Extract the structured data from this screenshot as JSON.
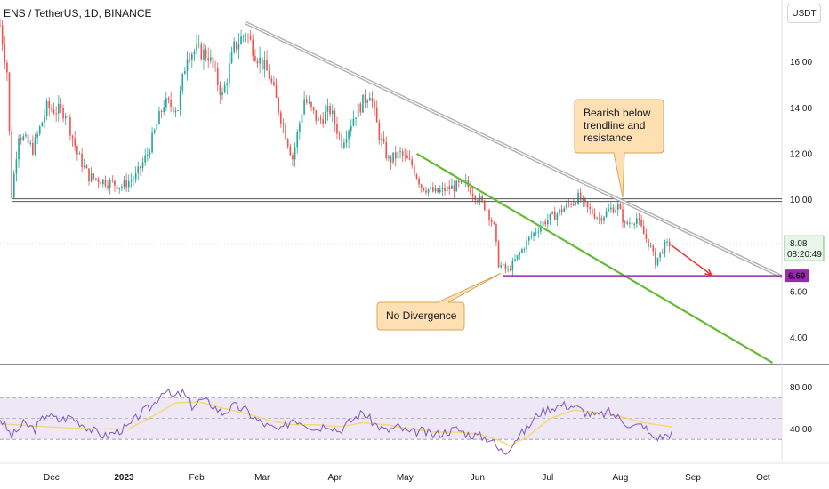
{
  "header": {
    "title": "ENS / TetherUS, 1D, BINANCE",
    "currency": "USDT"
  },
  "chart_data": {
    "type": "candlestick",
    "price_axis": {
      "ticks": [
        {
          "label": "16.00",
          "value": 16
        },
        {
          "label": "14.00",
          "value": 14
        },
        {
          "label": "12.00",
          "value": 12
        },
        {
          "label": "10.00",
          "value": 10
        },
        {
          "label": "8.00",
          "value": 8
        },
        {
          "label": "6.00",
          "value": 6
        },
        {
          "label": "4.00",
          "value": 4
        }
      ],
      "range": [
        2.9,
        18.0
      ]
    },
    "rsi_axis": {
      "ticks": [
        {
          "label": "80.00",
          "value": 80
        },
        {
          "label": "40.00",
          "value": 40
        }
      ],
      "range": [
        8,
        100
      ],
      "band": [
        30,
        70
      ],
      "mid": 50
    },
    "time_axis": {
      "ticks": [
        {
          "label": "Dec",
          "index": 22,
          "bold": false
        },
        {
          "label": "2023",
          "index": 53,
          "bold": true
        },
        {
          "label": "Feb",
          "index": 84,
          "bold": false
        },
        {
          "label": "Mar",
          "index": 112,
          "bold": false
        },
        {
          "label": "Apr",
          "index": 143,
          "bold": false
        },
        {
          "label": "May",
          "index": 173,
          "bold": false
        },
        {
          "label": "Jun",
          "index": 204,
          "bold": false
        },
        {
          "label": "Jul",
          "index": 234,
          "bold": false
        },
        {
          "label": "Aug",
          "index": 265,
          "bold": false
        },
        {
          "label": "Sep",
          "index": 296,
          "bold": false
        },
        {
          "label": "Oct",
          "index": 326,
          "bold": false
        }
      ],
      "range": [
        0,
        334
      ]
    },
    "price_path": [
      [
        0,
        17.6
      ],
      [
        3,
        15.6
      ],
      [
        5,
        10.2
      ],
      [
        8,
        12.9
      ],
      [
        14,
        12.2
      ],
      [
        20,
        14.0
      ],
      [
        28,
        13.8
      ],
      [
        33,
        12.0
      ],
      [
        38,
        11.0
      ],
      [
        45,
        10.8
      ],
      [
        52,
        10.6
      ],
      [
        58,
        11.0
      ],
      [
        63,
        12.0
      ],
      [
        70,
        14.2
      ],
      [
        76,
        14.0
      ],
      [
        80,
        16.4
      ],
      [
        84,
        16.5
      ],
      [
        89,
        16.3
      ],
      [
        95,
        14.5
      ],
      [
        100,
        16.6
      ],
      [
        105,
        17.3
      ],
      [
        109,
        16.4
      ],
      [
        115,
        15.4
      ],
      [
        120,
        13.6
      ],
      [
        125,
        11.8
      ],
      [
        130,
        14.4
      ],
      [
        136,
        13.4
      ],
      [
        141,
        13.9
      ],
      [
        146,
        12.5
      ],
      [
        152,
        13.8
      ],
      [
        158,
        14.7
      ],
      [
        162,
        12.8
      ],
      [
        166,
        11.7
      ],
      [
        171,
        12.0
      ],
      [
        176,
        11.5
      ],
      [
        180,
        10.6
      ],
      [
        186,
        10.3
      ],
      [
        192,
        10.5
      ],
      [
        199,
        10.7
      ],
      [
        203,
        10.2
      ],
      [
        208,
        9.6
      ],
      [
        211,
        8.8
      ],
      [
        213,
        7.2
      ],
      [
        217,
        6.9
      ],
      [
        221,
        7.5
      ],
      [
        226,
        8.3
      ],
      [
        232,
        9.0
      ],
      [
        238,
        9.4
      ],
      [
        243,
        9.8
      ],
      [
        247,
        10.1
      ],
      [
        251,
        9.6
      ],
      [
        256,
        9.2
      ],
      [
        261,
        9.6
      ],
      [
        264,
        9.7
      ],
      [
        267,
        8.9
      ],
      [
        272,
        9.2
      ],
      [
        275,
        8.5
      ],
      [
        278,
        7.9
      ],
      [
        280,
        7.3
      ],
      [
        284,
        8.0
      ],
      [
        287,
        8.08
      ]
    ],
    "rsi_path": [
      [
        0,
        50
      ],
      [
        5,
        33
      ],
      [
        10,
        45
      ],
      [
        15,
        40
      ],
      [
        20,
        55
      ],
      [
        25,
        48
      ],
      [
        30,
        52
      ],
      [
        35,
        45
      ],
      [
        40,
        38
      ],
      [
        45,
        33
      ],
      [
        50,
        38
      ],
      [
        55,
        42
      ],
      [
        60,
        55
      ],
      [
        65,
        62
      ],
      [
        70,
        78
      ],
      [
        74,
        70
      ],
      [
        78,
        75
      ],
      [
        82,
        62
      ],
      [
        86,
        68
      ],
      [
        90,
        64
      ],
      [
        95,
        55
      ],
      [
        100,
        62
      ],
      [
        105,
        58
      ],
      [
        110,
        48
      ],
      [
        115,
        42
      ],
      [
        120,
        38
      ],
      [
        125,
        50
      ],
      [
        130,
        46
      ],
      [
        135,
        40
      ],
      [
        140,
        45
      ],
      [
        145,
        38
      ],
      [
        150,
        48
      ],
      [
        155,
        56
      ],
      [
        160,
        45
      ],
      [
        165,
        38
      ],
      [
        170,
        42
      ],
      [
        175,
        36
      ],
      [
        180,
        38
      ],
      [
        185,
        34
      ],
      [
        190,
        37
      ],
      [
        195,
        40
      ],
      [
        200,
        35
      ],
      [
        205,
        33
      ],
      [
        210,
        30
      ],
      [
        213,
        20
      ],
      [
        216,
        18
      ],
      [
        220,
        30
      ],
      [
        225,
        40
      ],
      [
        230,
        55
      ],
      [
        235,
        60
      ],
      [
        240,
        63
      ],
      [
        245,
        62
      ],
      [
        250,
        56
      ],
      [
        255,
        52
      ],
      [
        260,
        56
      ],
      [
        265,
        50
      ],
      [
        270,
        42
      ],
      [
        275,
        44
      ],
      [
        278,
        33
      ],
      [
        282,
        32
      ],
      [
        287,
        36
      ]
    ],
    "rsi_ma_path": [
      [
        0,
        45
      ],
      [
        20,
        42
      ],
      [
        40,
        40
      ],
      [
        55,
        40
      ],
      [
        65,
        52
      ],
      [
        75,
        65
      ],
      [
        85,
        66
      ],
      [
        95,
        60
      ],
      [
        105,
        55
      ],
      [
        115,
        48
      ],
      [
        125,
        44
      ],
      [
        135,
        44
      ],
      [
        145,
        42
      ],
      [
        155,
        46
      ],
      [
        165,
        44
      ],
      [
        175,
        40
      ],
      [
        185,
        37
      ],
      [
        195,
        37
      ],
      [
        205,
        35
      ],
      [
        212,
        30
      ],
      [
        218,
        24
      ],
      [
        225,
        32
      ],
      [
        235,
        50
      ],
      [
        245,
        58
      ],
      [
        255,
        56
      ],
      [
        265,
        52
      ],
      [
        275,
        46
      ],
      [
        287,
        42
      ]
    ],
    "lines": {
      "resistance_horizontal": {
        "value": 9.98,
        "from": 5,
        "to": 334
      },
      "support_horizontal": {
        "value": 6.69,
        "from": 215,
        "to": 334
      },
      "descending_trendline": {
        "from": [
          105,
          17.7
        ],
        "to": [
          334,
          6.65
        ]
      },
      "green_trendline": {
        "from": [
          178,
          12.0
        ],
        "to": [
          330,
          2.9
        ]
      },
      "projection_arrow": {
        "from": [
          287,
          8.0
        ],
        "to": [
          304,
          6.72
        ]
      }
    },
    "current_price": {
      "value": 8.08,
      "label": "8.08",
      "countdown": "08:20:49",
      "color": "#4caf50"
    },
    "support_label": {
      "value": 6.69,
      "label": "6.69",
      "color": "#9c27b0"
    },
    "annotations": [
      {
        "text_lines": [
          "Bearish below",
          "trendline and",
          "resistance"
        ],
        "pointer_to": [
          266,
          10.1
        ]
      },
      {
        "text_lines": [
          "No Divergence"
        ],
        "pointer_to": [
          214,
          6.8
        ]
      }
    ],
    "colors": {
      "up": "#26a69a",
      "down": "#ef5350",
      "trendline": "#9e9e9e",
      "green_line": "#66bb3a",
      "support": "#9c27b0",
      "rsi": "#7e57c2",
      "rsi_ma": "#f5d76e",
      "rsi_band": "#ede7f6",
      "callout_fill": "#ffe0b2",
      "callout_stroke": "#d9a45b",
      "arrow": "#e53935"
    }
  }
}
